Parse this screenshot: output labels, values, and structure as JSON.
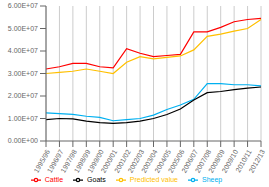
{
  "chart_data": {
    "type": "line",
    "categories": [
      "1995/96",
      "1996/97",
      "1997/98",
      "1998/99",
      "1999/00",
      "2000/01",
      "2001/02",
      "2002/03",
      "2003/04",
      "2004/05",
      "2005/06",
      "2006/07",
      "2007/08",
      "2008/09",
      "2009/10",
      "2010/11",
      "2012/13"
    ],
    "series": [
      {
        "name": "Cattle",
        "color": "#ff0000",
        "values": [
          32000000.0,
          33000000.0,
          34500000.0,
          34500000.0,
          33000000.0,
          32500000.0,
          41000000.0,
          39000000.0,
          37500000.0,
          38000000.0,
          38500000.0,
          48500000.0,
          48500000.0,
          50500000.0,
          53000000.0,
          54000000.0,
          54500000.0
        ]
      },
      {
        "name": "Sheep",
        "color": "#00b0f0",
        "values": [
          12500000.0,
          12200000.0,
          11800000.0,
          11000000.0,
          10500000.0,
          9000000.0,
          9500000.0,
          10000000.0,
          11500000.0,
          14000000.0,
          16000000.0,
          18500000.0,
          25500000.0,
          25500000.0,
          25000000.0,
          25000000.0,
          24500000.0
        ]
      },
      {
        "name": "Goats",
        "color": "#000000",
        "values": [
          9500000.0,
          10000000.0,
          9800000.0,
          8800000.0,
          8200000.0,
          7800000.0,
          8200000.0,
          8800000.0,
          10000000.0,
          11800000.0,
          14200000.0,
          18200000.0,
          21500000.0,
          22000000.0,
          22800000.0,
          23500000.0,
          24000000.0
        ]
      },
      {
        "name": "Predicted value",
        "color": "#ffc000",
        "values": [
          30000000.0,
          30500000.0,
          31000000.0,
          32000000.0,
          31000000.0,
          30000000.0,
          35000000.0,
          37500000.0,
          36500000.0,
          37200000.0,
          37800000.0,
          40500000.0,
          46500000.0,
          47500000.0,
          48800000.0,
          50000000.0,
          54000000.0
        ]
      }
    ],
    "ylim": [
      0,
      60000000.0
    ],
    "yticks": [
      {
        "value": 0,
        "label": "0.00E+00"
      },
      {
        "value": 10000000,
        "label": "1.00E+07"
      },
      {
        "value": 20000000,
        "label": "2.00E+07"
      },
      {
        "value": 30000000,
        "label": "3.00E+07"
      },
      {
        "value": 40000000,
        "label": "4.00E+07"
      },
      {
        "value": 50000000,
        "label": "5.00E+07"
      },
      {
        "value": 60000000,
        "label": "6.00E+07"
      }
    ],
    "grid": "x",
    "legend": "bottom"
  }
}
